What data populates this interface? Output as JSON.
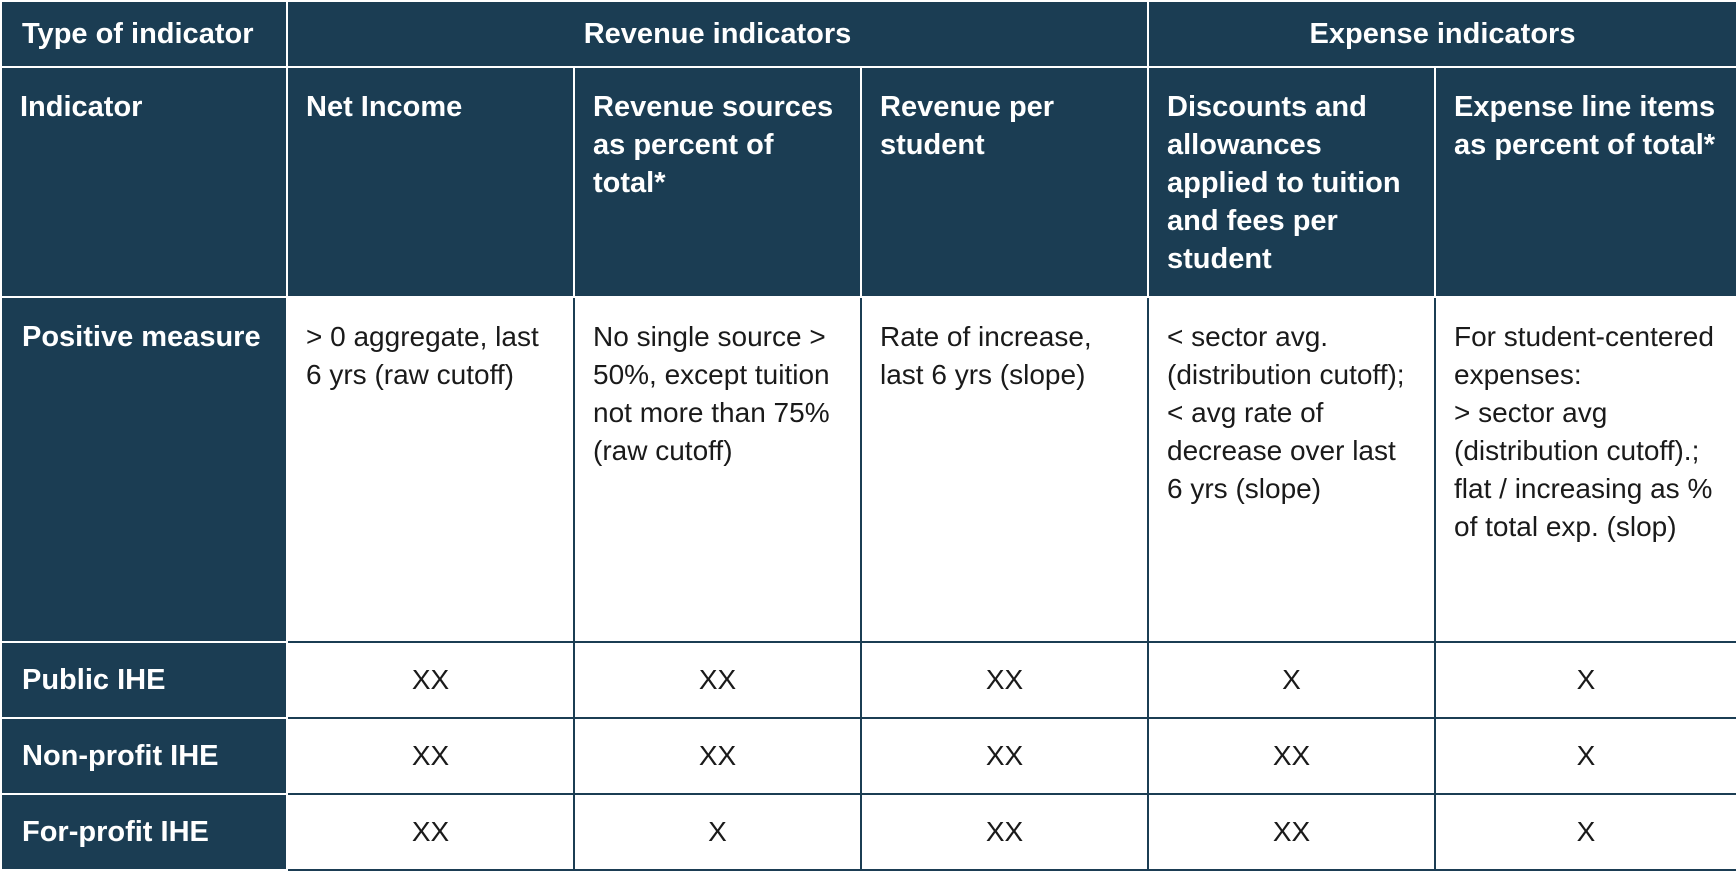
{
  "header": {
    "type_label": "Type of indicator",
    "revenue_group": "Revenue indicators",
    "expense_group": "Expense indicators"
  },
  "indicator_row": {
    "label": "Indicator",
    "cols": [
      "Net Income",
      "Revenue sources as percent of total*",
      "Revenue per student",
      "Discounts and allowances applied to tuition and fees per student",
      "Expense line items as percent of total*"
    ]
  },
  "positive_row": {
    "label": "Positive measure",
    "cols": [
      "> 0 aggregate, last 6 yrs (raw cutoff)",
      "No single source > 50%, except tuition not more than 75% (raw cutoff)",
      "Rate of increase, last 6 yrs (slope)",
      "< sector avg. (distribution cutoff);\n< avg rate of decrease over last 6 yrs (slope)",
      "For student-centered expenses:\n> sector avg (distribution cutoff).; flat / increasing as % of total exp. (slop)"
    ]
  },
  "ihe_rows": [
    {
      "label": "Public IHE",
      "values": [
        "XX",
        "XX",
        "XX",
        "X",
        "X"
      ]
    },
    {
      "label": "Non-profit IHE",
      "values": [
        "XX",
        "XX",
        "XX",
        "XX",
        "X"
      ]
    },
    {
      "label": "For-profit IHE",
      "values": [
        "XX",
        "X",
        "XX",
        "XX",
        "X"
      ]
    }
  ]
}
